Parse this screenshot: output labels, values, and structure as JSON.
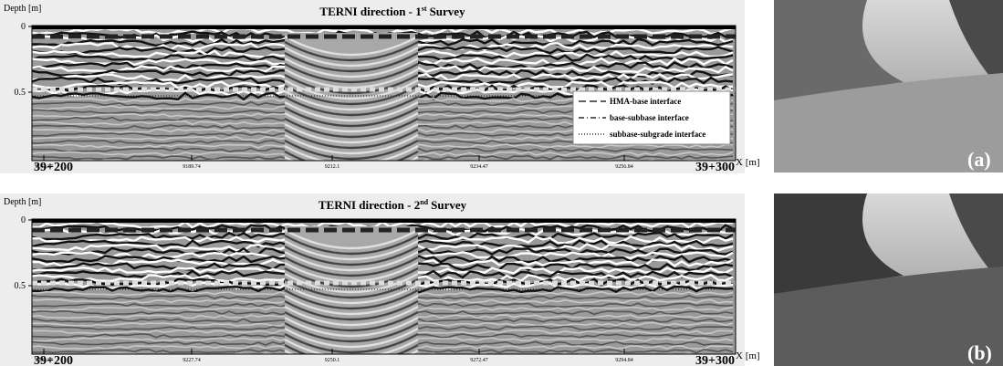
{
  "panels": [
    {
      "y_axis_label": "Depth [m]",
      "title": {
        "main": "TERNI direction - 1",
        "sup": "st",
        "rest": "Survey"
      },
      "y_ticks": [
        "0",
        "0.5"
      ],
      "x_ticks": [
        "9167.37",
        "9189.74",
        "9212.1",
        "9234.47",
        "9256.84"
      ],
      "start_label": "39+200",
      "end_label": "39+300",
      "x_axis_label": "X [m]",
      "legend": [
        "HMA-base interface",
        "base-subbase interface",
        "subbase-subgrade interface"
      ],
      "photo_label": "(a)"
    },
    {
      "y_axis_label": "Depth [m]",
      "title": {
        "main": "TERNI direction - 2",
        "sup": "nd",
        "rest": "Survey"
      },
      "y_ticks": [
        "0",
        "0.5"
      ],
      "x_ticks": [
        "9205.37",
        "9227.74",
        "9250.1",
        "9272.47",
        "9294.84"
      ],
      "start_label": "39+200",
      "end_label": "39+300",
      "x_axis_label": "X [m]",
      "photo_label": "(b)"
    }
  ]
}
